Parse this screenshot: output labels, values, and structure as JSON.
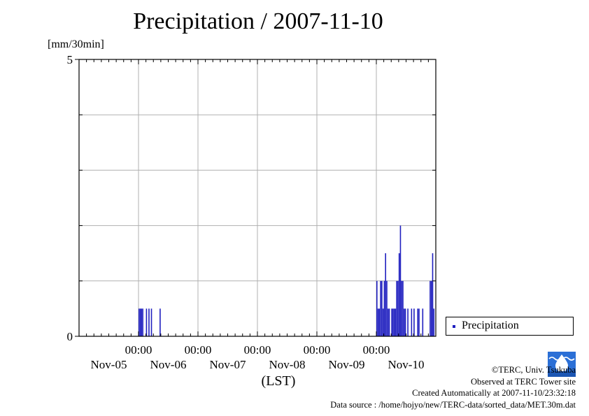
{
  "chart_data": {
    "type": "bar",
    "title": "Precipitation / 2007-11-10",
    "ylabel": "[mm/30min]",
    "xlabel": "(LST)",
    "ylim": [
      0,
      5
    ],
    "y_ticks": [
      "0",
      "5"
    ],
    "x_tick_times": [
      "00:00",
      "00:00",
      "00:00",
      "00:00",
      "00:00"
    ],
    "x_day_labels": [
      "Nov-05",
      "Nov-06",
      "Nov-07",
      "Nov-08",
      "Nov-09",
      "Nov-10"
    ],
    "grid": true,
    "legend_position": "right",
    "series": [
      {
        "name": "Precipitation",
        "color": "#1f1fbf",
        "x_start": "2007-11-05 00:00",
        "interval_hours": 0.5,
        "points": [
          [
            "2007-11-06 00:00",
            0.5
          ],
          [
            "2007-11-06 00:30",
            0.5
          ],
          [
            "2007-11-06 01:00",
            0.5
          ],
          [
            "2007-11-06 01:30",
            0.5
          ],
          [
            "2007-11-06 03:00",
            0.5
          ],
          [
            "2007-11-06 04:00",
            0.5
          ],
          [
            "2007-11-06 05:00",
            0.5
          ],
          [
            "2007-11-06 08:30",
            0.5
          ],
          [
            "2007-11-10 00:00",
            1.0
          ],
          [
            "2007-11-10 00:30",
            0.5
          ],
          [
            "2007-11-10 01:00",
            0.5
          ],
          [
            "2007-11-10 01:30",
            1.0
          ],
          [
            "2007-11-10 02:00",
            1.0
          ],
          [
            "2007-11-10 02:30",
            0.5
          ],
          [
            "2007-11-10 03:00",
            1.0
          ],
          [
            "2007-11-10 03:30",
            1.5
          ],
          [
            "2007-11-10 04:00",
            1.0
          ],
          [
            "2007-11-10 04:30",
            0.5
          ],
          [
            "2007-11-10 05:00",
            0.5
          ],
          [
            "2007-11-10 06:00",
            0.5
          ],
          [
            "2007-11-10 06:30",
            0.5
          ],
          [
            "2007-11-10 07:00",
            0.5
          ],
          [
            "2007-11-10 07:30",
            0.5
          ],
          [
            "2007-11-10 08:00",
            1.0
          ],
          [
            "2007-11-10 08:30",
            1.0
          ],
          [
            "2007-11-10 09:00",
            1.5
          ],
          [
            "2007-11-10 09:30",
            2.0
          ],
          [
            "2007-11-10 10:00",
            1.0
          ],
          [
            "2007-11-10 10:30",
            1.0
          ],
          [
            "2007-11-10 11:00",
            0.5
          ],
          [
            "2007-11-10 11:30",
            0.5
          ],
          [
            "2007-11-10 12:30",
            0.5
          ],
          [
            "2007-11-10 14:00",
            0.5
          ],
          [
            "2007-11-10 15:00",
            0.5
          ],
          [
            "2007-11-10 16:30",
            0.5
          ],
          [
            "2007-11-10 17:00",
            0.5
          ],
          [
            "2007-11-10 18:30",
            0.5
          ],
          [
            "2007-11-10 21:30",
            1.0
          ],
          [
            "2007-11-10 22:00",
            1.0
          ],
          [
            "2007-11-10 22:30",
            1.5
          ],
          [
            "2007-11-10 23:00",
            0.5
          ]
        ]
      }
    ]
  },
  "credits": {
    "line1": "©TERC, Univ. Tsukuba",
    "line2": "Observed at TERC Tower site",
    "line3": "Created Automatically at 2007-11-10/23:32:18",
    "line4": "Data source : /home/hojyo/new/TERC-data/sorted_data/MET.30m.dat"
  },
  "logo_text": "TERC"
}
